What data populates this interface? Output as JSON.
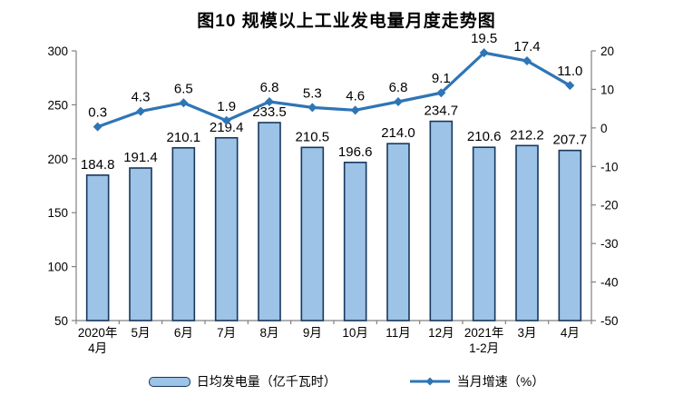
{
  "chart_data": {
    "type": "bar",
    "subtype": "combo-bar-line",
    "title": "图10 规模以上工业发电量月度走势图",
    "categories": [
      [
        "2020年",
        "4月"
      ],
      [
        "5月"
      ],
      [
        "6月"
      ],
      [
        "7月"
      ],
      [
        "8月"
      ],
      [
        "9月"
      ],
      [
        "10月"
      ],
      [
        "11月"
      ],
      [
        "12月"
      ],
      [
        "2021年",
        "1-2月"
      ],
      [
        "3月"
      ],
      [
        "4月"
      ]
    ],
    "series": [
      {
        "name": "日均发电量（亿千瓦时）",
        "type": "bar",
        "axis": "left",
        "values": [
          184.8,
          191.4,
          210.1,
          219.4,
          233.5,
          210.5,
          196.6,
          214.0,
          234.7,
          210.6,
          212.2,
          207.7
        ],
        "labels": [
          "184.8",
          "191.4",
          "210.1",
          "219.4",
          "233.5",
          "210.5",
          "196.6",
          "214.0",
          "234.7",
          "210.6",
          "212.2",
          "207.7"
        ]
      },
      {
        "name": "当月增速（%）",
        "type": "line",
        "axis": "right",
        "values": [
          0.3,
          4.3,
          6.5,
          1.9,
          6.8,
          5.3,
          4.6,
          6.8,
          9.1,
          19.5,
          17.4,
          11.0
        ],
        "labels": [
          "0.3",
          "4.3",
          "6.5",
          "1.9",
          "6.8",
          "5.3",
          "4.6",
          "6.8",
          "9.1",
          "19.5",
          "17.4",
          "11.0"
        ]
      }
    ],
    "left_axis": {
      "min": 50,
      "max": 300,
      "tick_labels": [
        "300",
        "250",
        "200",
        "150",
        "100",
        "50"
      ]
    },
    "right_axis": {
      "min": -50,
      "max": 20,
      "tick_labels": [
        "20",
        "10",
        "0",
        "-10",
        "-20",
        "-30",
        "-40",
        "-50"
      ]
    },
    "legend_position": "bottom",
    "grid": false,
    "colors": {
      "bar_fill": "#9DC3E6",
      "bar_stroke": "#17375E",
      "line": "#2E75B6",
      "axis": "#808080",
      "text": "#000000"
    }
  }
}
